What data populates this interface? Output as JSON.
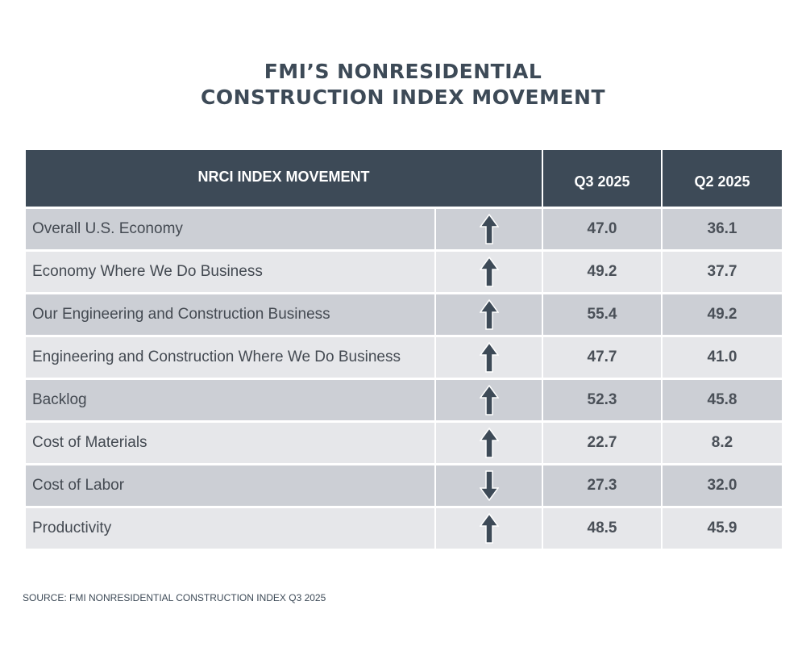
{
  "title_lines": [
    "FMI’S NONRESIDENTIAL",
    "CONSTRUCTION INDEX MOVEMENT"
  ],
  "colors": {
    "header": "#3d4a57",
    "row_dark": "#cccfd5",
    "row_light": "#e6e7ea",
    "arrow": "#3d4a57"
  },
  "chart_data": {
    "type": "table",
    "title": "FMI’S NONRESIDENTIAL CONSTRUCTION INDEX MOVEMENT",
    "columns": [
      "NRCI INDEX MOVEMENT",
      "Q3 2025",
      "Q2 2025"
    ],
    "rows": [
      {
        "label": "Overall U.S. Economy",
        "direction": "up",
        "q3": "47.0",
        "q2": "36.1"
      },
      {
        "label": "Economy Where We Do Business",
        "direction": "up",
        "q3": "49.2",
        "q2": "37.7"
      },
      {
        "label": "Our Engineering and Construction Business",
        "direction": "up",
        "q3": "55.4",
        "q2": "49.2"
      },
      {
        "label": "Engineering and Construction Where We Do Business",
        "direction": "up",
        "q3": "47.7",
        "q2": "41.0"
      },
      {
        "label": "Backlog",
        "direction": "up",
        "q3": "52.3",
        "q2": "45.8"
      },
      {
        "label": "Cost of Materials",
        "direction": "up",
        "q3": "22.7",
        "q2": "8.2"
      },
      {
        "label": "Cost of Labor",
        "direction": "down",
        "q3": "27.3",
        "q2": "32.0"
      },
      {
        "label": "Productivity",
        "direction": "up",
        "q3": "48.5",
        "q2": "45.9"
      }
    ]
  },
  "source": "SOURCE: FMI NONRESIDENTIAL CONSTRUCTION INDEX Q3 2025"
}
